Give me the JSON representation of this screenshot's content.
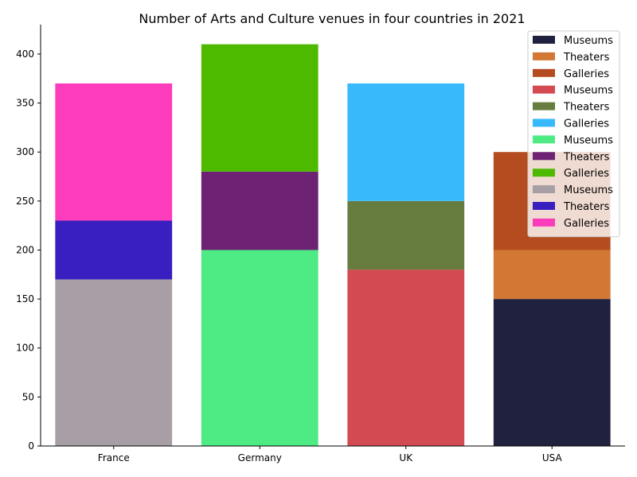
{
  "chart_data": {
    "type": "bar",
    "stacked": true,
    "title": "Number of Arts and Culture venues in four countries in 2021",
    "xlabel": "",
    "ylabel": "",
    "categories": [
      "France",
      "Germany",
      "UK",
      "USA"
    ],
    "ylim": [
      0,
      430
    ],
    "yticks": [
      0,
      50,
      100,
      150,
      200,
      250,
      300,
      350,
      400
    ],
    "grid": false,
    "legend_position": "top-right",
    "series": [
      {
        "name": "Museums",
        "category": "USA",
        "base": 0,
        "value": 150,
        "color": "#20203f"
      },
      {
        "name": "Theaters",
        "category": "USA",
        "base": 150,
        "value": 50,
        "color": "#d27734"
      },
      {
        "name": "Galleries",
        "category": "USA",
        "base": 200,
        "value": 100,
        "color": "#b54c1f"
      },
      {
        "name": "Museums",
        "category": "UK",
        "base": 0,
        "value": 180,
        "color": "#d34a52"
      },
      {
        "name": "Theaters",
        "category": "UK",
        "base": 180,
        "value": 70,
        "color": "#677c3f"
      },
      {
        "name": "Galleries",
        "category": "UK",
        "base": 250,
        "value": 120,
        "color": "#38b9fc"
      },
      {
        "name": "Museums",
        "category": "Germany",
        "base": 0,
        "value": 200,
        "color": "#4eea83"
      },
      {
        "name": "Theaters",
        "category": "Germany",
        "base": 200,
        "value": 80,
        "color": "#6e2273"
      },
      {
        "name": "Galleries",
        "category": "Germany",
        "base": 280,
        "value": 130,
        "color": "#4dba00"
      },
      {
        "name": "Museums",
        "category": "France",
        "base": 0,
        "value": 170,
        "color": "#a79fa5"
      },
      {
        "name": "Theaters",
        "category": "France",
        "base": 170,
        "value": 60,
        "color": "#391fc0"
      },
      {
        "name": "Galleries",
        "category": "France",
        "base": 230,
        "value": 140,
        "color": "#fd3cbc"
      }
    ]
  }
}
